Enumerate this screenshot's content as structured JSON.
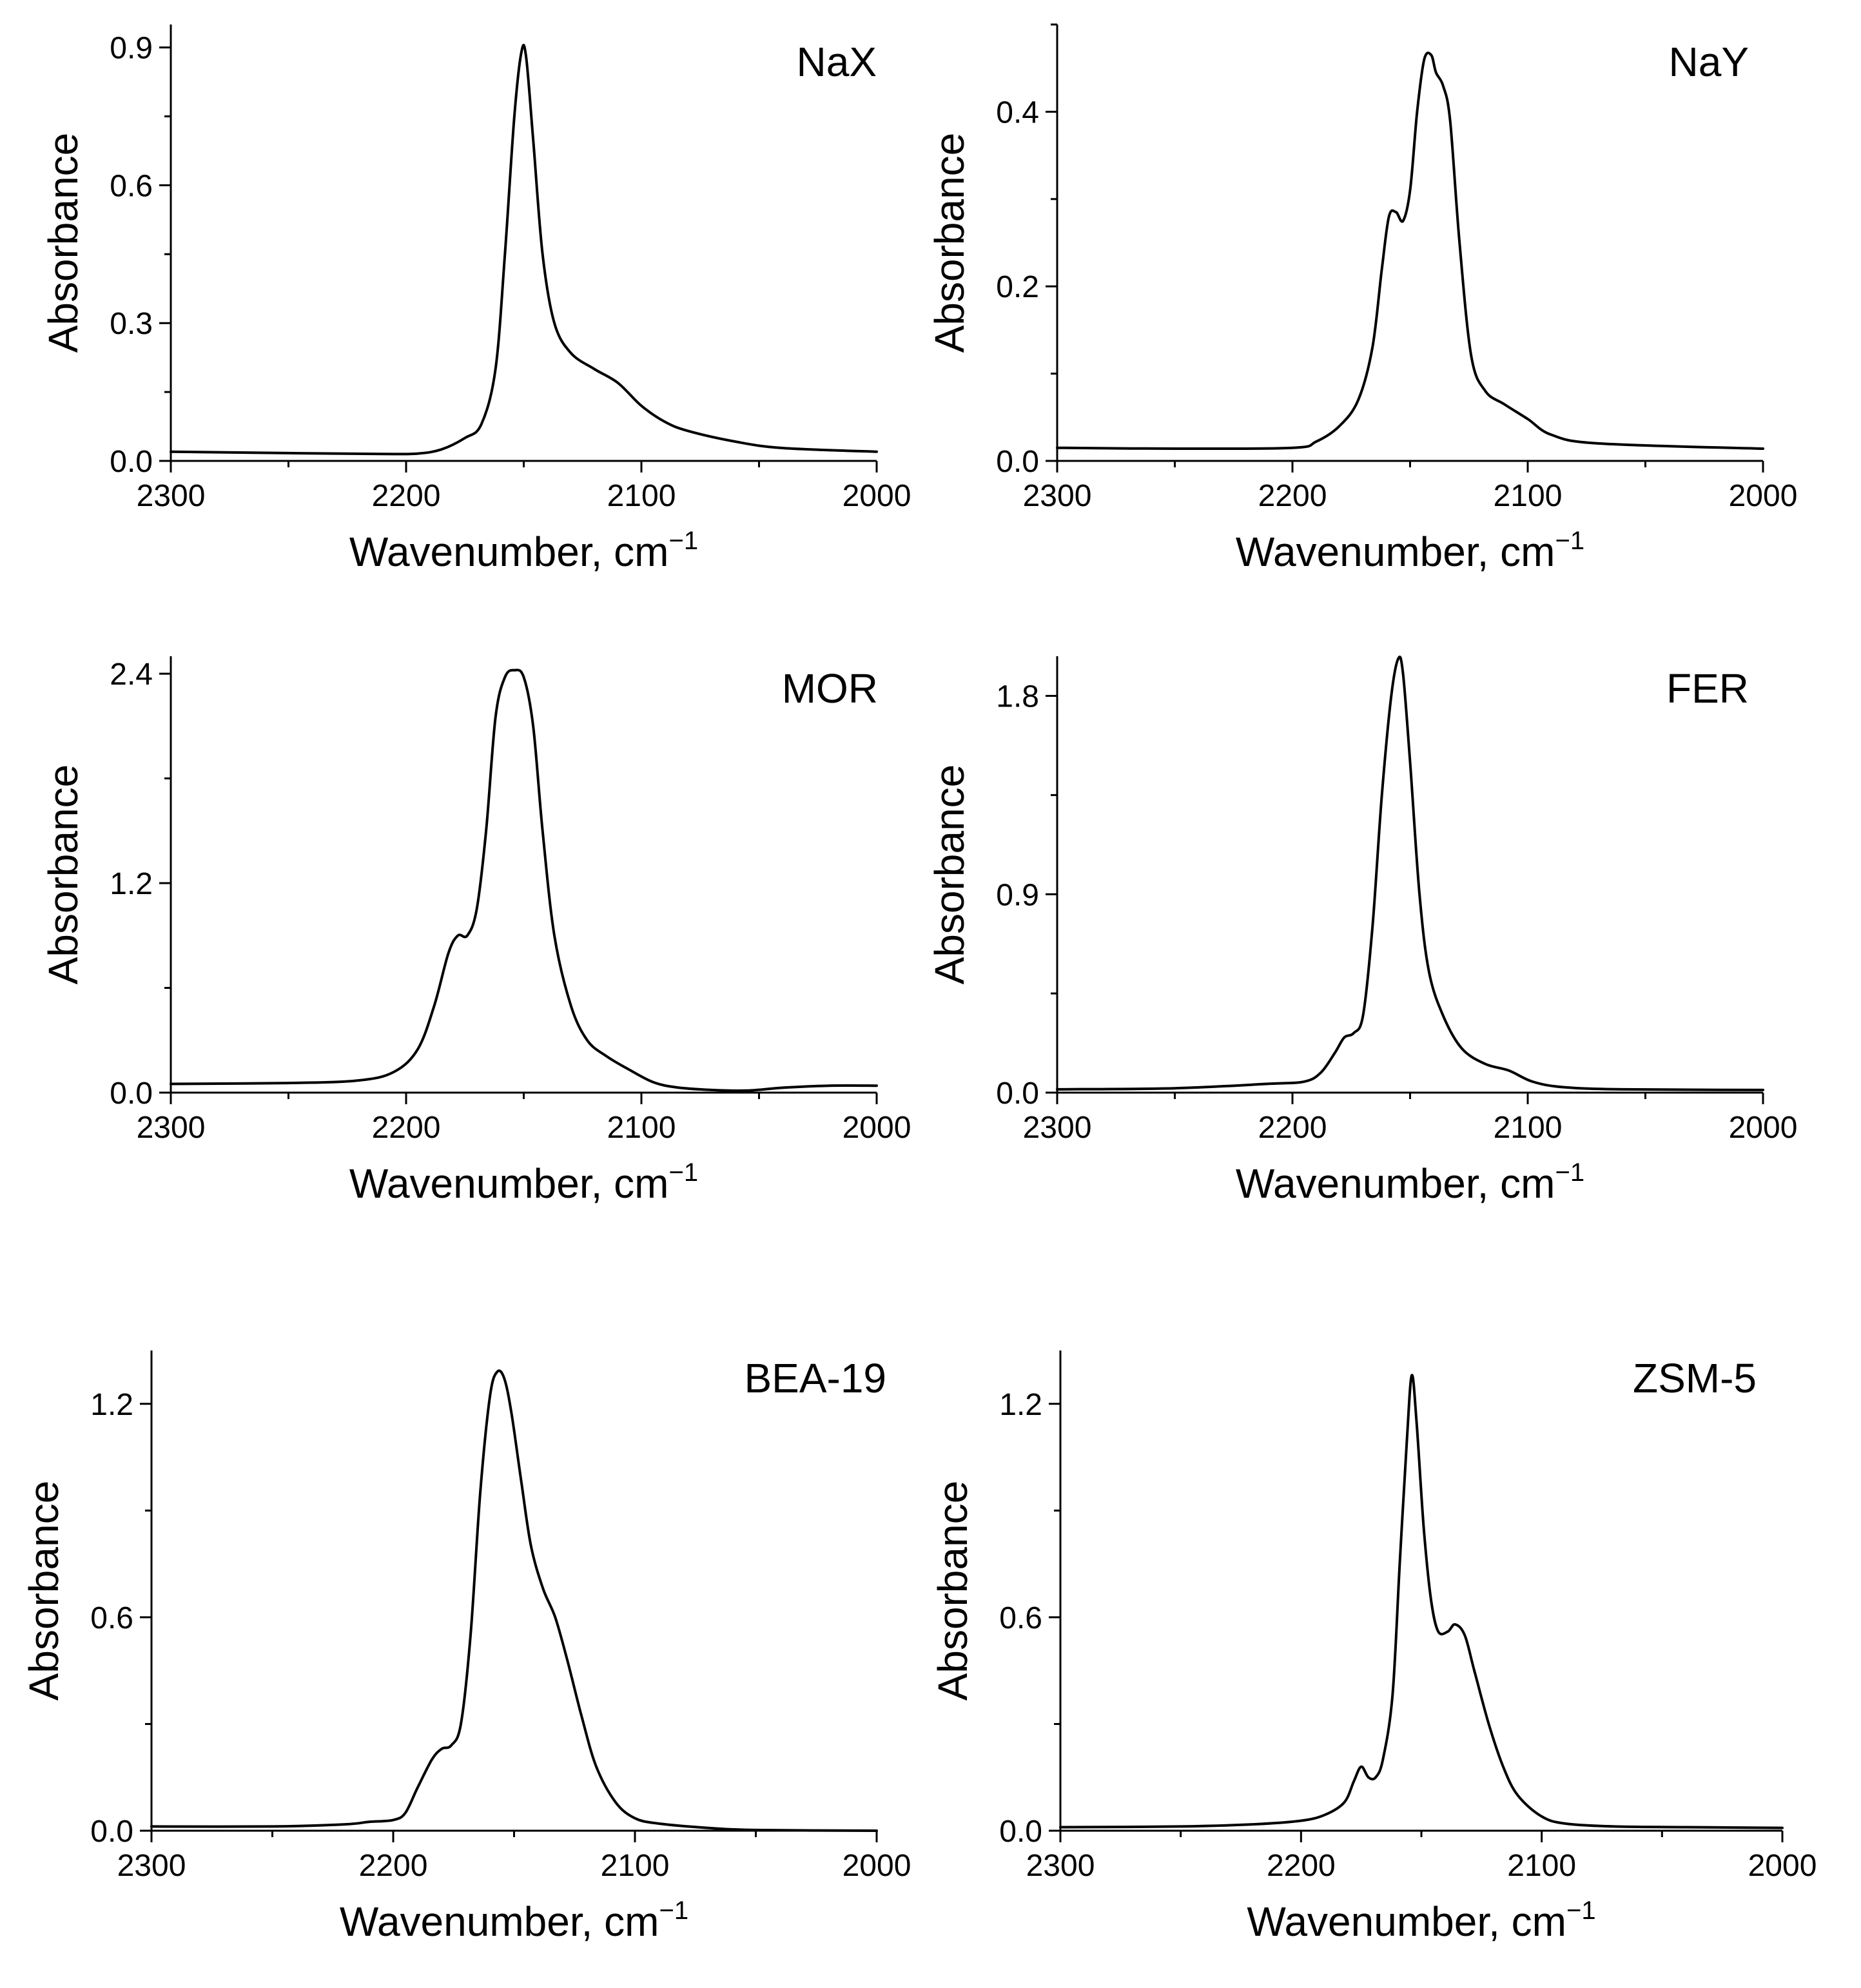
{
  "figure": {
    "panel_order": [
      "NaX",
      "NaY",
      "MOR",
      "FER",
      "BEA-19",
      "ZSM-5"
    ]
  },
  "chart_data": [
    {
      "type": "line",
      "label": "NaX",
      "xlabel": "Wavenumber, cm",
      "xlabel_sup": "−1",
      "ylabel": "Absorbance",
      "xlim": [
        2300,
        2000
      ],
      "ylim": [
        0,
        0.95
      ],
      "xticks": [
        2300,
        2200,
        2100,
        2000
      ],
      "yticks": [
        0.0,
        0.3,
        0.6,
        0.9
      ],
      "ytick_labels": [
        "0.0",
        "0.3",
        "0.6",
        "0.9"
      ],
      "points": [
        [
          2300,
          0.02
        ],
        [
          2250,
          0.017
        ],
        [
          2210,
          0.015
        ],
        [
          2195,
          0.016
        ],
        [
          2185,
          0.025
        ],
        [
          2175,
          0.05
        ],
        [
          2168,
          0.08
        ],
        [
          2162,
          0.2
        ],
        [
          2158,
          0.45
        ],
        [
          2154,
          0.75
        ],
        [
          2151,
          0.89
        ],
        [
          2149,
          0.88
        ],
        [
          2146,
          0.7
        ],
        [
          2142,
          0.45
        ],
        [
          2137,
          0.3
        ],
        [
          2130,
          0.235
        ],
        [
          2120,
          0.2
        ],
        [
          2110,
          0.17
        ],
        [
          2100,
          0.12
        ],
        [
          2090,
          0.085
        ],
        [
          2080,
          0.065
        ],
        [
          2060,
          0.042
        ],
        [
          2040,
          0.028
        ],
        [
          2000,
          0.02
        ]
      ]
    },
    {
      "type": "line",
      "label": "NaY",
      "xlabel": "Wavenumber, cm",
      "xlabel_sup": "−1",
      "ylabel": "Absorbance",
      "xlim": [
        2300,
        2000
      ],
      "ylim": [
        0,
        0.5
      ],
      "xticks": [
        2300,
        2200,
        2100,
        2000
      ],
      "yticks": [
        0.0,
        0.2,
        0.4
      ],
      "ytick_labels": [
        "0.0",
        "0.2",
        "0.4"
      ],
      "points": [
        [
          2300,
          0.015
        ],
        [
          2250,
          0.014
        ],
        [
          2200,
          0.015
        ],
        [
          2190,
          0.022
        ],
        [
          2180,
          0.04
        ],
        [
          2172,
          0.07
        ],
        [
          2166,
          0.13
        ],
        [
          2162,
          0.22
        ],
        [
          2159,
          0.28
        ],
        [
          2156,
          0.285
        ],
        [
          2153,
          0.275
        ],
        [
          2150,
          0.31
        ],
        [
          2147,
          0.4
        ],
        [
          2144,
          0.46
        ],
        [
          2141,
          0.465
        ],
        [
          2139,
          0.445
        ],
        [
          2136,
          0.43
        ],
        [
          2133,
          0.39
        ],
        [
          2129,
          0.25
        ],
        [
          2124,
          0.12
        ],
        [
          2118,
          0.08
        ],
        [
          2110,
          0.065
        ],
        [
          2100,
          0.048
        ],
        [
          2090,
          0.03
        ],
        [
          2070,
          0.02
        ],
        [
          2000,
          0.014
        ]
      ]
    },
    {
      "type": "line",
      "label": "MOR",
      "xlabel": "Wavenumber, cm",
      "xlabel_sup": "−1",
      "ylabel": "Absorbance",
      "xlim": [
        2300,
        2000
      ],
      "ylim": [
        0,
        2.5
      ],
      "xticks": [
        2300,
        2200,
        2100,
        2000
      ],
      "yticks": [
        0.0,
        1.2,
        2.4
      ],
      "ytick_labels": [
        "0.0",
        "1.2",
        "2.4"
      ],
      "points": [
        [
          2300,
          0.05
        ],
        [
          2250,
          0.055
        ],
        [
          2220,
          0.07
        ],
        [
          2205,
          0.12
        ],
        [
          2195,
          0.25
        ],
        [
          2188,
          0.5
        ],
        [
          2182,
          0.8
        ],
        [
          2178,
          0.9
        ],
        [
          2174,
          0.9
        ],
        [
          2170,
          1.05
        ],
        [
          2166,
          1.5
        ],
        [
          2162,
          2.15
        ],
        [
          2158,
          2.38
        ],
        [
          2154,
          2.42
        ],
        [
          2150,
          2.38
        ],
        [
          2146,
          2.1
        ],
        [
          2142,
          1.5
        ],
        [
          2137,
          0.9
        ],
        [
          2130,
          0.5
        ],
        [
          2123,
          0.3
        ],
        [
          2115,
          0.21
        ],
        [
          2105,
          0.13
        ],
        [
          2095,
          0.06
        ],
        [
          2085,
          0.03
        ],
        [
          2070,
          0.015
        ],
        [
          2055,
          0.012
        ],
        [
          2040,
          0.028
        ],
        [
          2020,
          0.04
        ],
        [
          2000,
          0.04
        ]
      ]
    },
    {
      "type": "line",
      "label": "FER",
      "xlabel": "Wavenumber, cm",
      "xlabel_sup": "−1",
      "ylabel": "Absorbance",
      "xlim": [
        2300,
        2000
      ],
      "ylim": [
        0,
        1.98
      ],
      "xticks": [
        2300,
        2200,
        2100,
        2000
      ],
      "yticks": [
        0.0,
        0.9,
        1.8
      ],
      "ytick_labels": [
        "0.0",
        "0.9",
        "1.8"
      ],
      "points": [
        [
          2300,
          0.015
        ],
        [
          2250,
          0.02
        ],
        [
          2210,
          0.04
        ],
        [
          2195,
          0.05
        ],
        [
          2188,
          0.09
        ],
        [
          2182,
          0.18
        ],
        [
          2178,
          0.25
        ],
        [
          2174,
          0.27
        ],
        [
          2170,
          0.35
        ],
        [
          2166,
          0.75
        ],
        [
          2162,
          1.35
        ],
        [
          2158,
          1.8
        ],
        [
          2155,
          1.97
        ],
        [
          2153,
          1.9
        ],
        [
          2150,
          1.5
        ],
        [
          2146,
          0.9
        ],
        [
          2142,
          0.55
        ],
        [
          2136,
          0.35
        ],
        [
          2128,
          0.2
        ],
        [
          2118,
          0.13
        ],
        [
          2108,
          0.1
        ],
        [
          2098,
          0.05
        ],
        [
          2085,
          0.025
        ],
        [
          2060,
          0.015
        ],
        [
          2000,
          0.012
        ]
      ]
    },
    {
      "type": "line",
      "label": "BEA-19",
      "xlabel": "Wavenumber, cm",
      "xlabel_sup": "−1",
      "ylabel": "Absorbance",
      "xlim": [
        2300,
        2000
      ],
      "ylim": [
        0,
        1.35
      ],
      "xticks": [
        2300,
        2200,
        2100,
        2000
      ],
      "yticks": [
        0.0,
        0.6,
        1.2
      ],
      "ytick_labels": [
        "0.0",
        "0.6",
        "1.2"
      ],
      "points": [
        [
          2300,
          0.012
        ],
        [
          2250,
          0.012
        ],
        [
          2220,
          0.018
        ],
        [
          2210,
          0.025
        ],
        [
          2200,
          0.03
        ],
        [
          2195,
          0.05
        ],
        [
          2190,
          0.12
        ],
        [
          2184,
          0.2
        ],
        [
          2180,
          0.23
        ],
        [
          2176,
          0.24
        ],
        [
          2172,
          0.3
        ],
        [
          2168,
          0.55
        ],
        [
          2164,
          0.95
        ],
        [
          2160,
          1.22
        ],
        [
          2157,
          1.29
        ],
        [
          2154,
          1.27
        ],
        [
          2151,
          1.17
        ],
        [
          2147,
          0.98
        ],
        [
          2143,
          0.8
        ],
        [
          2138,
          0.68
        ],
        [
          2133,
          0.6
        ],
        [
          2128,
          0.48
        ],
        [
          2122,
          0.32
        ],
        [
          2116,
          0.18
        ],
        [
          2108,
          0.08
        ],
        [
          2100,
          0.035
        ],
        [
          2090,
          0.02
        ],
        [
          2070,
          0.008
        ],
        [
          2050,
          0.002
        ],
        [
          2000,
          0
        ]
      ]
    },
    {
      "type": "line",
      "label": "ZSM-5",
      "xlabel": "Wavenumber, cm",
      "xlabel_sup": "−1",
      "ylabel": "Absorbance",
      "xlim": [
        2300,
        2000
      ],
      "ylim": [
        0,
        1.35
      ],
      "xticks": [
        2300,
        2200,
        2100,
        2000
      ],
      "yticks": [
        0.0,
        0.6,
        1.2
      ],
      "ytick_labels": [
        "0.0",
        "0.6",
        "1.2"
      ],
      "points": [
        [
          2300,
          0.01
        ],
        [
          2250,
          0.012
        ],
        [
          2220,
          0.018
        ],
        [
          2200,
          0.028
        ],
        [
          2190,
          0.045
        ],
        [
          2182,
          0.08
        ],
        [
          2178,
          0.14
        ],
        [
          2175,
          0.18
        ],
        [
          2172,
          0.15
        ],
        [
          2169,
          0.15
        ],
        [
          2166,
          0.2
        ],
        [
          2162,
          0.38
        ],
        [
          2159,
          0.75
        ],
        [
          2156,
          1.1
        ],
        [
          2154,
          1.28
        ],
        [
          2152,
          1.15
        ],
        [
          2149,
          0.85
        ],
        [
          2146,
          0.65
        ],
        [
          2143,
          0.56
        ],
        [
          2139,
          0.56
        ],
        [
          2136,
          0.58
        ],
        [
          2132,
          0.55
        ],
        [
          2128,
          0.45
        ],
        [
          2122,
          0.3
        ],
        [
          2116,
          0.18
        ],
        [
          2110,
          0.1
        ],
        [
          2100,
          0.04
        ],
        [
          2090,
          0.02
        ],
        [
          2070,
          0.012
        ],
        [
          2040,
          0.01
        ],
        [
          2000,
          0.008
        ]
      ]
    }
  ]
}
